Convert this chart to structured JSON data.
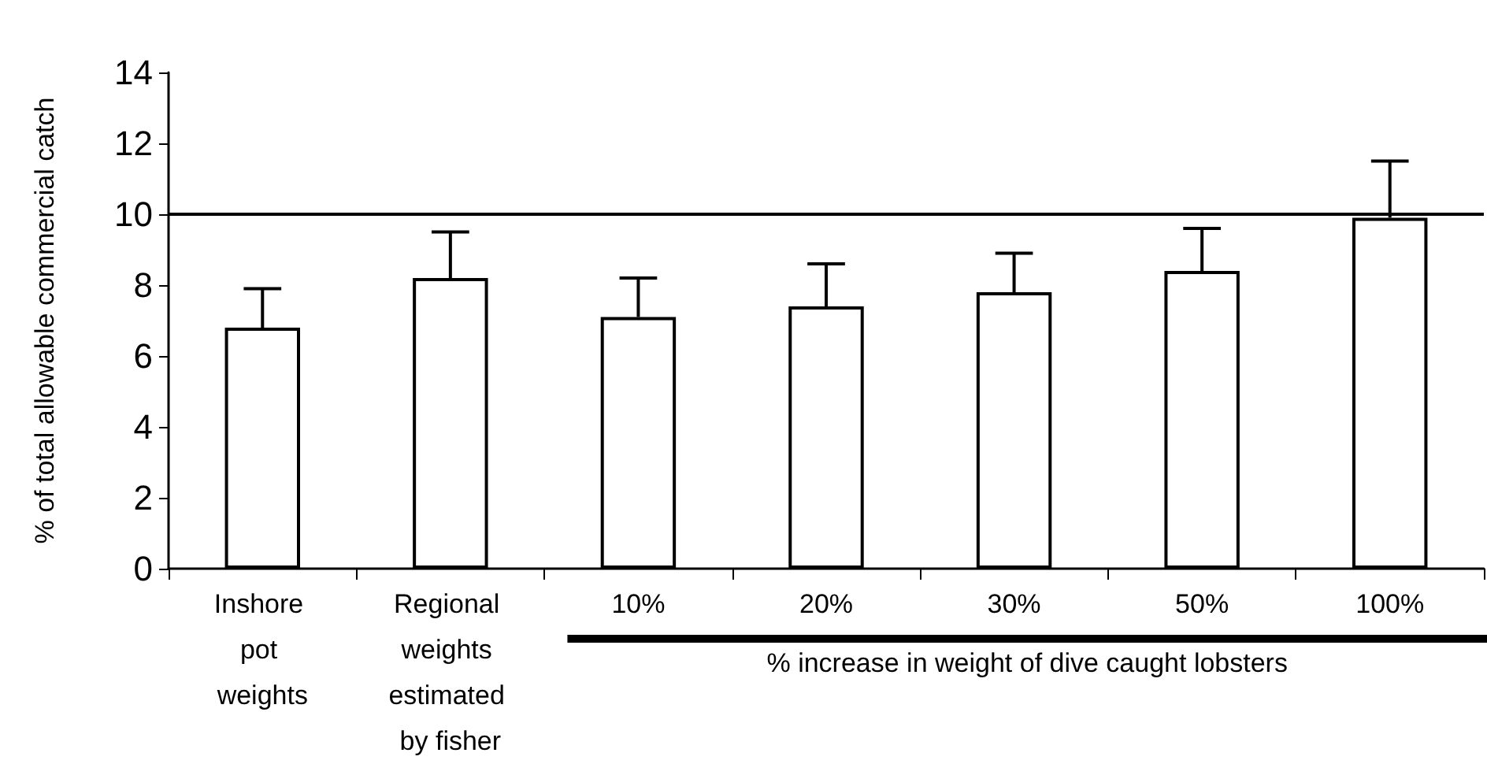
{
  "chart_data": {
    "type": "bar",
    "ylabel": "% of total allowable commercial catch",
    "categories": [
      "Inshore pot weights",
      "Regional weights estimated by fisher",
      "10%",
      "20%",
      "30%",
      "50%",
      "100%"
    ],
    "values": [
      6.8,
      8.2,
      7.1,
      7.4,
      7.8,
      8.4,
      9.9
    ],
    "errors": [
      1.1,
      1.3,
      1.1,
      1.2,
      1.1,
      1.2,
      1.6
    ],
    "color": "#ffffff",
    "ylim": [
      0,
      14
    ],
    "yticks": [
      0,
      2,
      4,
      6,
      8,
      10,
      12,
      14
    ],
    "ref_lines": [
      {
        "axis": "y",
        "value": 10,
        "color": "#000000"
      }
    ],
    "annotations": [
      "% increase in weight of dive caught lobsters"
    ],
    "grid": false
  }
}
